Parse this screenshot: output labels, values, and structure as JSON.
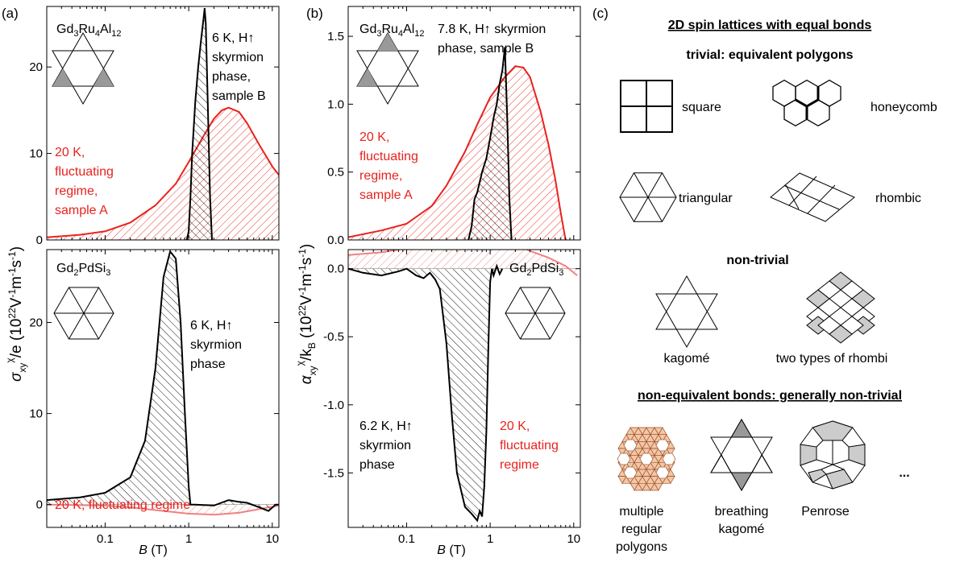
{
  "panel_labels": {
    "a": "(a)",
    "b": "(b)",
    "c": "(c)"
  },
  "axes": {
    "a_ylabel": "σ",
    "b_ylabel": "α",
    "xlabel": "B (T)",
    "xticks": [
      "0.1",
      "1",
      "10"
    ]
  },
  "chart_data": [
    {
      "type": "area",
      "panel": "a-top",
      "compound": "Gd3Ru4Al12",
      "xscale": "log",
      "xlim": [
        0.02,
        12
      ],
      "ylim": [
        0,
        27
      ],
      "yticks": [
        "0",
        "10",
        "20"
      ],
      "series": [
        {
          "name": "6 K, H↑ skyrmion phase, sample B",
          "color": "#000000",
          "x": [
            0.95,
            1.0,
            1.05,
            1.1,
            1.2,
            1.3,
            1.4,
            1.5,
            1.55,
            1.6,
            1.7,
            1.8,
            1.9
          ],
          "y": [
            0,
            1,
            5,
            10,
            16,
            20,
            23,
            25.5,
            26.8,
            25,
            15,
            5,
            0
          ]
        },
        {
          "name": "20 K, fluctuating regime, sample A",
          "color": "#e8221d",
          "x": [
            0.02,
            0.05,
            0.1,
            0.2,
            0.4,
            0.7,
            1.0,
            1.5,
            2.0,
            2.5,
            3.0,
            4.0,
            5.0,
            7.0,
            10.0,
            12.0
          ],
          "y": [
            0.3,
            0.6,
            1,
            2,
            4,
            6.5,
            9,
            12,
            14,
            15,
            15.3,
            14.8,
            13.5,
            11,
            8.5,
            7.5
          ]
        }
      ]
    },
    {
      "type": "area",
      "panel": "a-bottom",
      "compound": "Gd2PdSi3",
      "xscale": "log",
      "xlim": [
        0.02,
        12
      ],
      "ylim": [
        -2.5,
        28
      ],
      "yticks": [
        "0",
        "10",
        "20"
      ],
      "series": [
        {
          "name": "6 K, H↑ skyrmion phase",
          "color": "#000000",
          "x": [
            0.02,
            0.05,
            0.1,
            0.2,
            0.3,
            0.4,
            0.5,
            0.6,
            0.7,
            0.8,
            0.9,
            1.0,
            1.05,
            1.2,
            2.0,
            3.0,
            4.0,
            5.0,
            7.0,
            9.0,
            11.0,
            12.0
          ],
          "y": [
            0.5,
            0.8,
            1.3,
            3,
            7,
            15,
            25,
            27.8,
            27,
            20,
            10,
            2,
            0,
            0,
            -0.1,
            0.5,
            0.3,
            0.2,
            -0.3,
            -0.7,
            0,
            0
          ]
        },
        {
          "name": "20 K, fluctuating regime",
          "color": "#f08080",
          "x": [
            0.02,
            0.1,
            0.2,
            0.5,
            1.0,
            2.0,
            4.0,
            8.0,
            12.0
          ],
          "y": [
            0,
            -0.1,
            -0.3,
            -0.7,
            -1.0,
            -1.1,
            -0.9,
            -0.4,
            -0.1
          ]
        }
      ]
    },
    {
      "type": "area",
      "panel": "b-top",
      "compound": "Gd3Ru4Al12",
      "xscale": "log",
      "xlim": [
        0.02,
        12
      ],
      "ylim": [
        0,
        1.72
      ],
      "yticks": [
        "0.0",
        "0.5",
        "1.0",
        "1.5"
      ],
      "series": [
        {
          "name": "7.8 K, H↑ skyrmion phase, sample B",
          "color": "#000000",
          "x": [
            0.55,
            0.6,
            0.65,
            0.7,
            0.8,
            0.9,
            1.0,
            1.1,
            1.2,
            1.3,
            1.4,
            1.5,
            1.6,
            1.7,
            1.8
          ],
          "y": [
            0,
            0.1,
            0.3,
            0.35,
            0.5,
            0.6,
            0.75,
            0.9,
            1.0,
            1.15,
            1.25,
            1.42,
            0.9,
            0.3,
            0
          ]
        },
        {
          "name": "20 K, fluctuating regime, sample A",
          "color": "#e8221d",
          "x": [
            0.02,
            0.05,
            0.1,
            0.2,
            0.3,
            0.5,
            0.7,
            1.0,
            1.5,
            2.0,
            2.5,
            3.0,
            4.0,
            5.0,
            6.0,
            7.0,
            8.0
          ],
          "y": [
            0.02,
            0.07,
            0.12,
            0.25,
            0.4,
            0.65,
            0.85,
            1.05,
            1.2,
            1.28,
            1.27,
            1.2,
            0.95,
            0.7,
            0.45,
            0.2,
            0
          ]
        }
      ]
    },
    {
      "type": "area",
      "panel": "b-bottom",
      "compound": "Gd2PdSi3",
      "xscale": "log",
      "xlim": [
        0.02,
        12
      ],
      "ylim": [
        -1.9,
        0.14
      ],
      "yticks": [
        "0.0",
        "-0.5",
        "-1.0",
        "-1.5"
      ],
      "series": [
        {
          "name": "6.2 K, H↑ skyrmion phase",
          "color": "#000000",
          "x": [
            0.02,
            0.03,
            0.05,
            0.08,
            0.1,
            0.13,
            0.16,
            0.19,
            0.22,
            0.25,
            0.3,
            0.35,
            0.4,
            0.5,
            0.6,
            0.7,
            0.75,
            0.8,
            0.85,
            0.9,
            0.95,
            1.0,
            1.05,
            1.1,
            1.2,
            1.3,
            1.4
          ],
          "y": [
            0,
            -0.03,
            -0.05,
            -0.02,
            0,
            -0.05,
            -0.07,
            -0.03,
            -0.08,
            -0.15,
            -0.55,
            -1.1,
            -1.5,
            -1.75,
            -1.8,
            -1.85,
            -1.78,
            -1.82,
            -1.6,
            -1.2,
            -0.6,
            -0.1,
            0,
            -0.05,
            0.02,
            -0.04,
            0
          ]
        },
        {
          "name": "20 K, fluctuating regime",
          "color": "#f08080",
          "x": [
            0.02,
            0.05,
            0.1,
            0.2,
            0.3,
            0.5,
            0.7,
            1.0,
            1.5,
            2.0,
            3.0,
            5.0,
            8.0,
            11.0
          ],
          "y": [
            0.1,
            0.12,
            0.15,
            0.2,
            0.25,
            0.3,
            0.3,
            0.27,
            0.22,
            0.18,
            0.13,
            0.08,
            0.02,
            -0.05
          ]
        }
      ]
    }
  ],
  "annotations": {
    "a_top_black": [
      "6 K, H↑",
      "skyrmion",
      "phase,",
      "sample B"
    ],
    "a_top_red": [
      "20 K,",
      "fluctuating",
      "regime,",
      "sample A"
    ],
    "a_bottom_black": [
      "6 K, H↑",
      "skyrmion",
      "phase"
    ],
    "a_bottom_red": "20 K, fluctuating regime",
    "b_top_black": [
      "7.8 K, H↑ skyrmion",
      "phase, sample B"
    ],
    "b_top_red": [
      "20 K,",
      "fluctuating",
      "regime,",
      "sample A"
    ],
    "b_bottom_black": [
      "6.2 K, H↑",
      "skyrmion",
      "phase"
    ],
    "b_bottom_red": [
      "20 K,",
      "fluctuating",
      "regime"
    ]
  },
  "lattices": {
    "title": "2D spin lattices with equal bonds",
    "trivial_header": "trivial: equivalent polygons",
    "square": "square",
    "honeycomb": "honeycomb",
    "triangular": "triangular",
    "rhombic": "rhombic",
    "nontrivial_header": "non-trivial",
    "kagome": "kagomé",
    "two_rhombi": "two types of rhombi",
    "nonequiv_header": "non-equivalent bonds: generally non-trivial",
    "multiple": [
      "multiple",
      "regular",
      "polygons"
    ],
    "breathing": [
      "breathing",
      "kagomé"
    ],
    "penrose": "Penrose",
    "ellipsis": "..."
  }
}
